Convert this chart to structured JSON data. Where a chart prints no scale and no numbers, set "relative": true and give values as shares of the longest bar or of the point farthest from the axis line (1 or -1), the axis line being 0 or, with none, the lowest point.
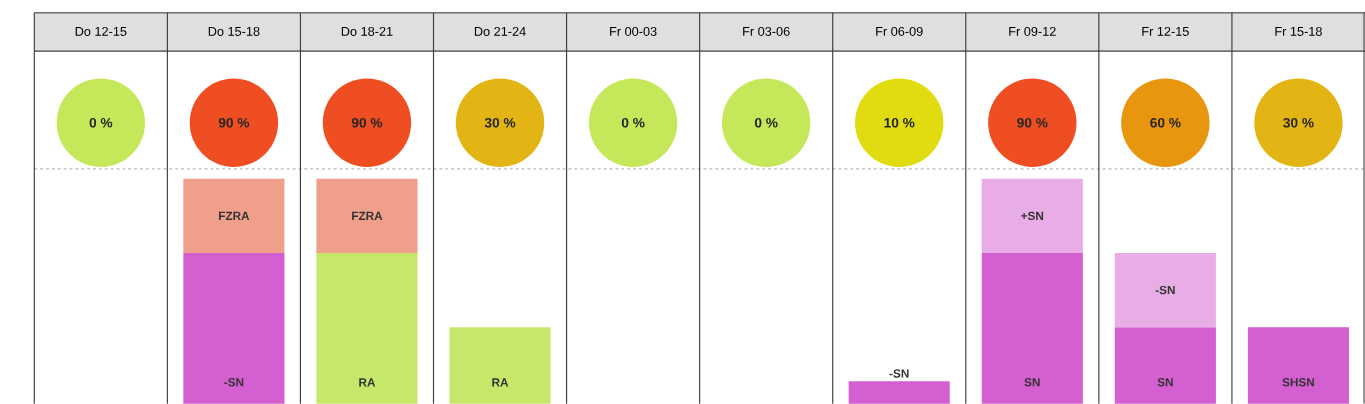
{
  "chart_data": [
    {
      "type": "other",
      "value_labels": [
        "0 %",
        "90 %",
        "90 %",
        "30 %",
        "0 %",
        "0 %",
        "10 %",
        "90 %",
        "60 %",
        "30 %"
      ],
      "colors": [
        "#c5e85a",
        "#ee4e22",
        "#ee4e22",
        "#e2b514",
        "#c5e85a",
        "#c5e85a",
        "#e0dc10",
        "#ee4e22",
        "#e8950f",
        "#e2b514"
      ]
    },
    {
      "type": "bar",
      "stacked": true,
      "relative": true,
      "categories": [
        "Do 12-15",
        "Do 15-18",
        "Do 18-21",
        "Do 21-24",
        "Fr 00-03",
        "Fr 03-06",
        "Fr 06-09",
        "Fr 09-12",
        "Fr 12-15",
        "Fr 15-18"
      ],
      "series": [
        {
          "values": [
            null,
            0.67,
            0.67,
            0.34,
            null,
            null,
            0.1,
            0.67,
            0.34,
            0.34
          ],
          "colors": [
            null,
            "#d35fd0",
            "#c6e86a",
            "#c6e86a",
            null,
            null,
            "#d35fd0",
            "#d35fd0",
            "#d35fd0",
            "#d35fd0"
          ]
        },
        {
          "values": [
            null,
            0.33,
            0.33,
            null,
            null,
            null,
            null,
            0.33,
            0.33,
            null
          ],
          "colors": [
            null,
            "#f0a08a",
            "#f0a08a",
            null,
            null,
            null,
            null,
            "#e8ace6",
            "#e8ace6",
            null
          ]
        }
      ],
      "annotations": [
        {
          "text": "-SN",
          "x": "Do 15-18",
          "y": 0
        },
        {
          "text": "FZRA",
          "x": "Do 15-18",
          "y": 1.0
        },
        {
          "text": "RA",
          "x": "Do 18-21",
          "y": 0
        },
        {
          "text": "FZRA",
          "x": "Do 18-21",
          "y": 1.0
        },
        {
          "text": "RA",
          "x": "Do 21-24",
          "y": 0
        },
        {
          "text": "-SN",
          "x": "Fr 06-09",
          "y": 0.1
        },
        {
          "text": "SN",
          "x": "Fr 09-12",
          "y": 0
        },
        {
          "text": "+SN",
          "x": "Fr 09-12",
          "y": 1.0
        },
        {
          "text": "SN",
          "x": "Fr 12-15",
          "y": 0
        },
        {
          "text": "-SN",
          "x": "Fr 12-15",
          "y": 0.67
        },
        {
          "text": "SHSN",
          "x": "Fr 15-18",
          "y": 0
        }
      ]
    }
  ]
}
